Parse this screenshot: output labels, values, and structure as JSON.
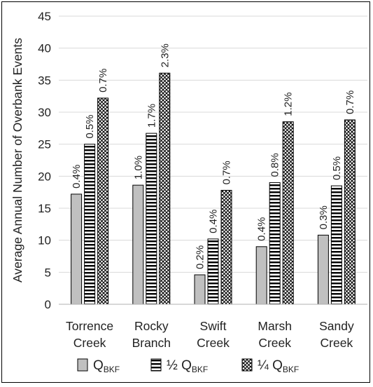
{
  "chart_data": {
    "type": "bar",
    "ylabel": "Average Annual Number of Overbank Events",
    "ylim": [
      0,
      45
    ],
    "yticks": [
      "0",
      "5",
      "10",
      "15",
      "20",
      "25",
      "30",
      "35",
      "40",
      "45"
    ],
    "grid": true,
    "legend_position": "bottom",
    "categories": [
      {
        "line1": "Torrence",
        "line2": "Creek"
      },
      {
        "line1": "Rocky",
        "line2": "Branch"
      },
      {
        "line1": "Swift",
        "line2": "Creek"
      },
      {
        "line1": "Marsh",
        "line2": "Creek"
      },
      {
        "line1": "Sandy",
        "line2": "Creek"
      }
    ],
    "series": [
      {
        "key": "q",
        "legend_main": "Q",
        "legend_sub": "BKF",
        "legend_prefix": "",
        "pattern": "solid-gray",
        "values": [
          17.2,
          18.6,
          4.6,
          9.0,
          10.8
        ],
        "labels": [
          "0.4%",
          "1.0%",
          "0.2%",
          "0.4%",
          "0.3%"
        ]
      },
      {
        "key": "half",
        "legend_main": "Q",
        "legend_sub": "BKF",
        "legend_prefix": "½ ",
        "pattern": "horizontal-lines",
        "values": [
          25.0,
          26.7,
          10.2,
          19.0,
          18.5
        ],
        "labels": [
          "0.5%",
          "1.7%",
          "0.4%",
          "0.8%",
          "0.5%"
        ]
      },
      {
        "key": "quarter",
        "legend_main": "Q",
        "legend_sub": "BKF",
        "legend_prefix": "¼ ",
        "pattern": "crosshatch",
        "values": [
          32.2,
          36.1,
          17.8,
          28.5,
          28.8
        ],
        "labels": [
          "0.7%",
          "2.3%",
          "0.7%",
          "1.2%",
          "0.7%"
        ]
      }
    ]
  },
  "colors": {
    "bar_fill": "#c0c0c0",
    "stroke": "#000000",
    "grid": "#d9d9d9",
    "text": "#222222"
  }
}
